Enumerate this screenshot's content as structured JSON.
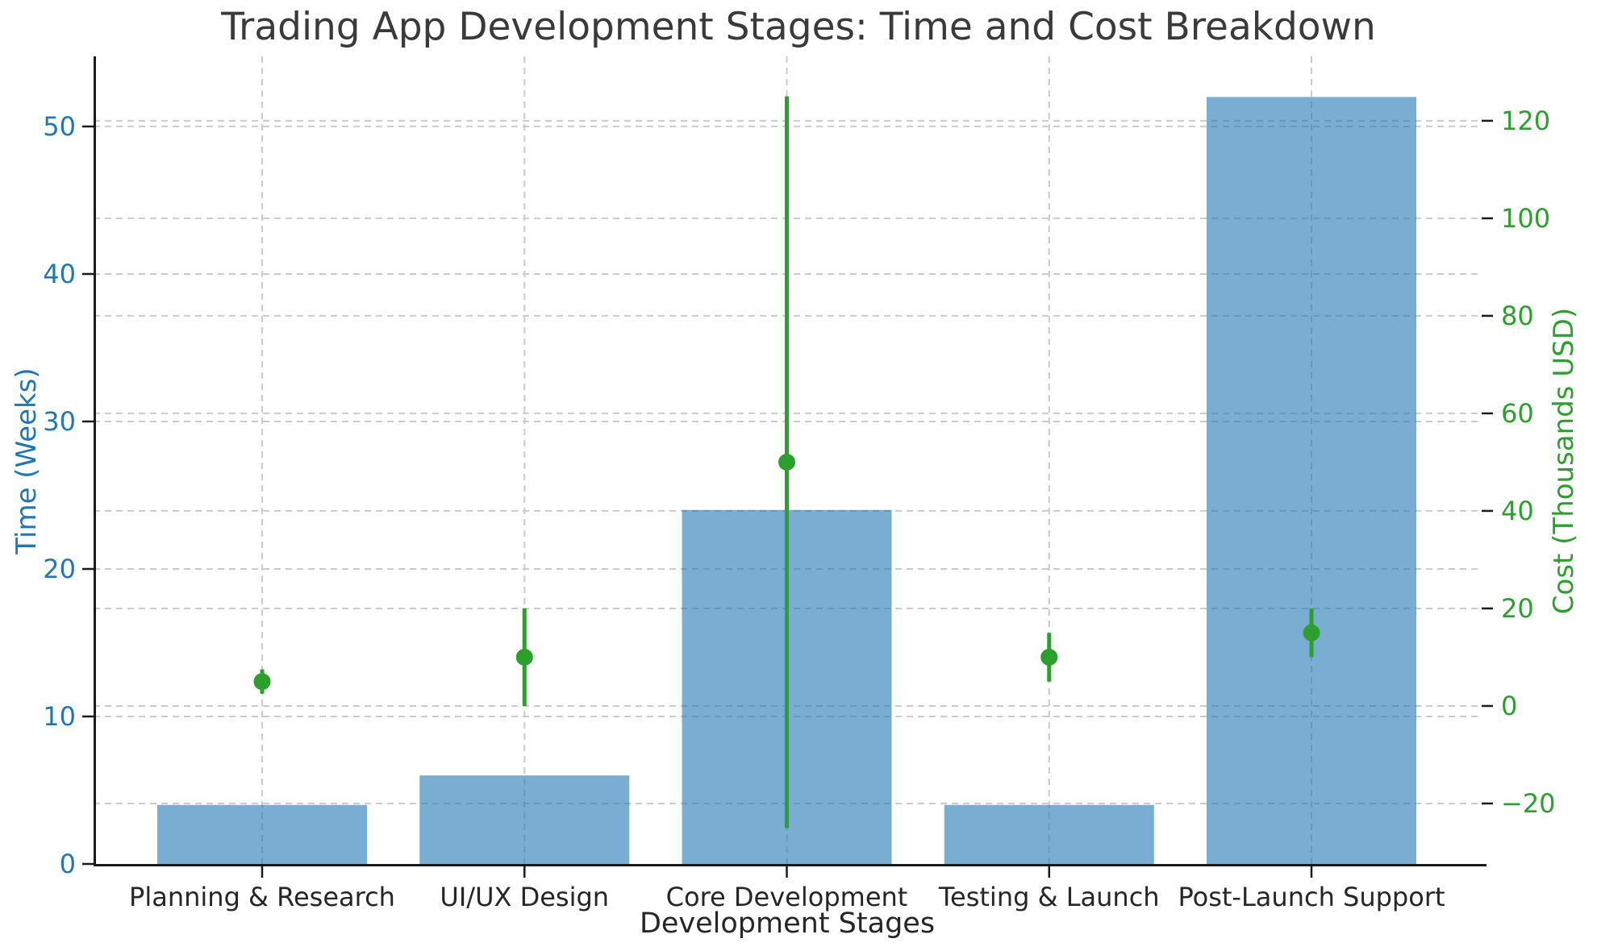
{
  "chart_data": {
    "type": "bar",
    "title": "Trading App Development Stages: Time and Cost Breakdown",
    "xlabel": "Development Stages",
    "ylabel_left": "Time (Weeks)",
    "ylabel_right": "Cost (Thousands USD)",
    "categories": [
      "Planning & Research",
      "UI/UX Design",
      "Core Development",
      "Testing & Launch",
      "Post-Launch Support"
    ],
    "series": [
      {
        "name": "Time (Weeks)",
        "type": "bar",
        "axis": "left",
        "values": [
          4,
          6,
          24,
          4,
          52
        ],
        "color": "#1f77b4",
        "fill_opacity": 0.6
      },
      {
        "name": "Cost (Thousands USD)",
        "type": "scatter-errorbar",
        "axis": "right",
        "values": [
          5,
          10,
          50,
          10,
          15
        ],
        "errors": [
          2.5,
          10,
          75,
          5,
          5
        ],
        "color": "#2ca02c"
      }
    ],
    "left_axis": {
      "ticks": [
        0,
        10,
        20,
        30,
        40,
        50
      ],
      "range": [
        0,
        54.75
      ],
      "color": "#1f77b4"
    },
    "right_axis": {
      "ticks": [
        -20,
        0,
        20,
        40,
        60,
        80,
        100,
        120
      ],
      "range": [
        -32.4,
        133.2
      ],
      "color": "#2ca02c"
    },
    "grid": "on",
    "grid_color": "#cbcbcb",
    "spine_color": "#1a1a1a",
    "tick_text_color": "#262626",
    "title_color": "#3a3a3a",
    "legend": "none"
  }
}
